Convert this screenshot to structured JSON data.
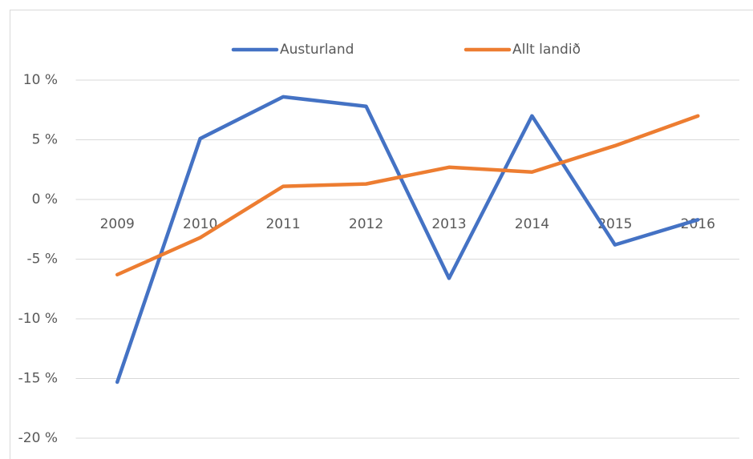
{
  "chart_data": {
    "type": "line",
    "categories": [
      "2009",
      "2010",
      "2011",
      "2012",
      "2013",
      "2014",
      "2015",
      "2016"
    ],
    "series": [
      {
        "name": "Austurland",
        "color": "#4472c4",
        "values": [
          -15.3,
          5.1,
          8.6,
          7.8,
          -6.6,
          7.0,
          -3.8,
          -1.7
        ]
      },
      {
        "name": "Allt landið",
        "color": "#ed7d31",
        "values": [
          -6.3,
          -3.2,
          1.1,
          1.3,
          2.7,
          2.3,
          4.5,
          7.0
        ]
      }
    ],
    "ylim": [
      -20,
      10
    ],
    "yticks": [
      {
        "value": -20,
        "label": "-20 %"
      },
      {
        "value": -15,
        "label": "-15 %"
      },
      {
        "value": -10,
        "label": "-10 %"
      },
      {
        "value": -5,
        "label": "-5 %"
      },
      {
        "value": 0,
        "label": "0 %"
      },
      {
        "value": 5,
        "label": "5 %"
      },
      {
        "value": 10,
        "label": "10 %"
      }
    ],
    "grid": true,
    "legend": "top"
  }
}
